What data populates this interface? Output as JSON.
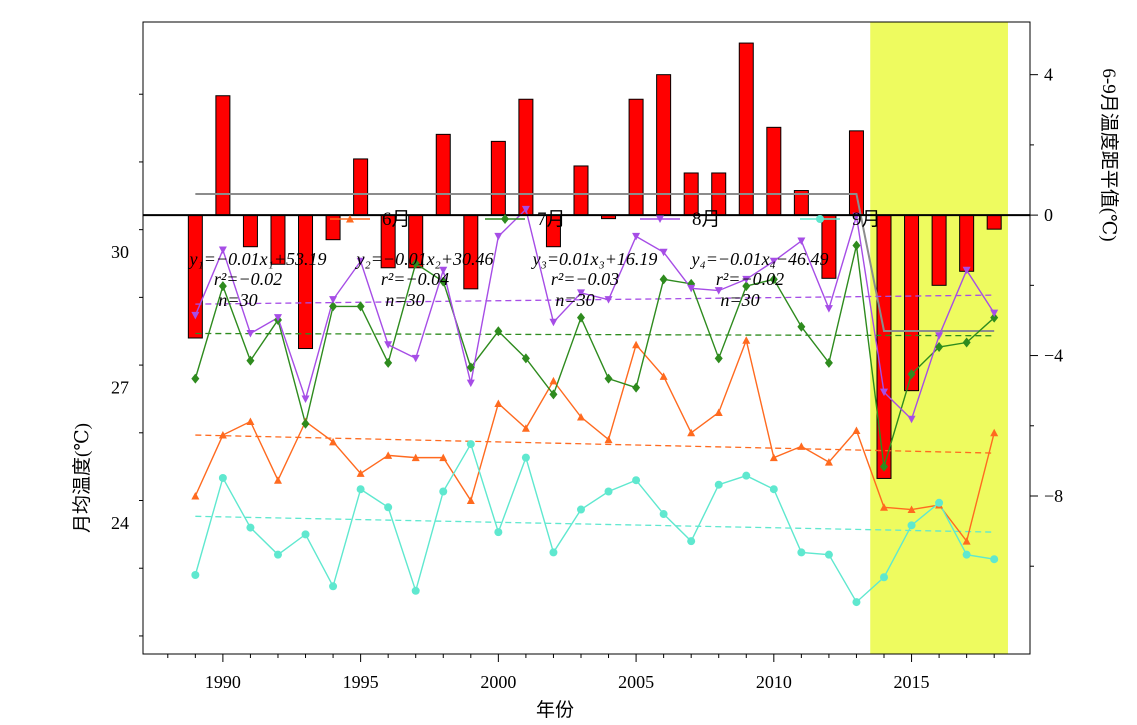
{
  "chart_data": [
    {
      "type": "bar",
      "title": "",
      "ylabel": "6-9月温度距平值(℃)",
      "ylim": [
        -12.5,
        5.5
      ],
      "yticks": [
        4,
        0,
        -4,
        -8
      ],
      "ytick_labels": [
        "4",
        "0",
        "−4",
        "−8"
      ],
      "categories": [
        1989,
        1990,
        1991,
        1992,
        1993,
        1994,
        1995,
        1996,
        1997,
        1998,
        1999,
        2000,
        2001,
        2002,
        2003,
        2004,
        2005,
        2006,
        2007,
        2008,
        2009,
        2010,
        2011,
        2012,
        2013,
        2014,
        2015,
        2016,
        2017,
        2018
      ],
      "values": [
        -3.5,
        3.4,
        -0.9,
        -1.4,
        -3.8,
        -0.7,
        1.6,
        -1.5,
        -1.5,
        2.3,
        -2.1,
        2.1,
        3.3,
        -0.9,
        1.4,
        -0.1,
        3.3,
        4.0,
        1.2,
        1.2,
        4.9,
        2.5,
        0.7,
        -1.8,
        2.4,
        -7.5,
        -5.0,
        -2.0,
        -1.6,
        -0.4
      ],
      "color": "#ff0000",
      "trend_line": {
        "color": "#8c8c8c",
        "points": [
          [
            1989,
            0.6
          ],
          [
            2013,
            0.6
          ],
          [
            2014,
            -3.3
          ],
          [
            2018,
            -3.3
          ]
        ]
      }
    },
    {
      "type": "line",
      "xlabel": "年份",
      "ylabel": "月均温度(℃)",
      "xlim": [
        1987.1,
        2019.3
      ],
      "ylim": [
        21.1,
        35.1
      ],
      "xticks": [
        1990,
        1995,
        2000,
        2005,
        2010,
        2015
      ],
      "xtick_labels": [
        "1990",
        "1995",
        "2000",
        "2005",
        "2010",
        "2015"
      ],
      "yticks": [
        24,
        27,
        30
      ],
      "ytick_labels": [
        "24",
        "27",
        "30"
      ],
      "x": [
        1989,
        1990,
        1991,
        1992,
        1993,
        1994,
        1995,
        1996,
        1997,
        1998,
        1999,
        2000,
        2001,
        2002,
        2003,
        2004,
        2005,
        2006,
        2007,
        2008,
        2009,
        2010,
        2011,
        2012,
        2013,
        2014,
        2015,
        2016,
        2017,
        2018
      ],
      "series": [
        {
          "name": "6月",
          "color": "#ff6a1f",
          "marker": "triangle-up",
          "values": [
            24.6,
            25.95,
            26.25,
            24.95,
            26.25,
            25.8,
            25.1,
            25.5,
            25.45,
            25.45,
            24.5,
            26.65,
            26.1,
            27.15,
            26.35,
            25.85,
            27.95,
            27.25,
            26.0,
            26.45,
            28.05,
            25.45,
            25.7,
            25.35,
            26.05,
            24.35,
            24.3,
            24.4,
            23.6,
            26.0
          ],
          "trend": [
            25.95,
            25.55
          ]
        },
        {
          "name": "7月",
          "color": "#2e8b1e",
          "marker": "diamond",
          "values": [
            27.2,
            29.25,
            27.6,
            28.5,
            26.2,
            28.8,
            28.8,
            27.55,
            29.75,
            29.35,
            27.45,
            28.25,
            27.65,
            26.85,
            28.55,
            27.2,
            27.0,
            29.4,
            29.3,
            27.65,
            29.25,
            29.4,
            28.35,
            27.55,
            30.15,
            25.25,
            27.3,
            27.9,
            28.0,
            28.55
          ],
          "trend": [
            28.2,
            28.15
          ]
        },
        {
          "name": "8月",
          "color": "#a64de6",
          "marker": "triangle-down",
          "values": [
            28.6,
            30.05,
            28.2,
            28.55,
            26.75,
            28.95,
            29.8,
            27.95,
            27.65,
            29.6,
            27.1,
            30.35,
            30.95,
            28.45,
            29.1,
            28.95,
            30.35,
            30.0,
            29.2,
            29.15,
            29.4,
            29.8,
            30.25,
            28.75,
            30.8,
            26.9,
            26.3,
            28.15,
            29.6,
            28.65
          ],
          "trend": [
            28.85,
            29.05
          ]
        },
        {
          "name": "9月",
          "color": "#5fe8cf",
          "marker": "circle",
          "values": [
            22.85,
            25.0,
            23.9,
            23.3,
            23.75,
            22.6,
            24.75,
            24.35,
            22.5,
            24.7,
            25.75,
            23.8,
            25.45,
            23.35,
            24.3,
            24.7,
            24.95,
            24.2,
            23.6,
            24.85,
            25.05,
            24.75,
            23.35,
            23.3,
            22.25,
            22.8,
            23.95,
            24.45,
            23.3,
            23.2
          ],
          "trend": [
            24.15,
            23.8
          ]
        }
      ],
      "equations": [
        {
          "line1": "y₁=−0.01x₁+53.19",
          "line2": "r²=−0.02",
          "line3": "n=30"
        },
        {
          "line1": "y₂=−0.01x₂+30.46",
          "line2": "r²=−0.04",
          "line3": "n=30"
        },
        {
          "line1": "y₃=0.01x₃+16.19",
          "line2": "r²=−0.03",
          "line3": "n=30"
        },
        {
          "line1": "y₄=−0.01x₄−46.49",
          "line2": "r²=−0.02",
          "line3": "n=30"
        }
      ],
      "highlight": {
        "x_range": [
          2013.5,
          2018.5
        ],
        "color": "#eefb5f"
      }
    }
  ]
}
